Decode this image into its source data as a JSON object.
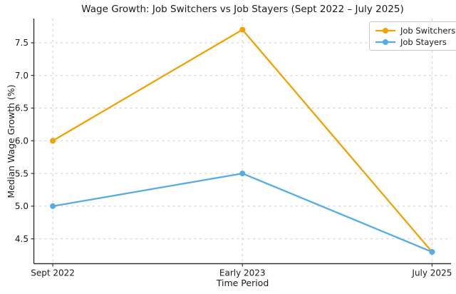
{
  "chart_data": {
    "type": "line",
    "title": "Wage Growth: Job Switchers vs Job Stayers (Sept 2022 – July 2025)",
    "xlabel": "Time Period",
    "ylabel": "Median Wage Growth (%)",
    "categories": [
      "Sept 2022",
      "Early 2023",
      "July 2025"
    ],
    "series": [
      {
        "name": "Job Switchers",
        "color": "#F2A202",
        "values": [
          6.0,
          7.7,
          4.3
        ]
      },
      {
        "name": "Job Stayers",
        "color": "#56ACE4",
        "values": [
          5.0,
          5.5,
          4.3
        ]
      }
    ],
    "yticks": [
      4.5,
      5.0,
      5.5,
      6.0,
      6.5,
      7.0,
      7.5
    ],
    "ytick_labels": [
      "4.5",
      "5.0",
      "5.5",
      "6.0",
      "6.5",
      "7.0",
      "7.5"
    ],
    "ylim": [
      4.12,
      7.87
    ],
    "grid": true,
    "grid_style": "dashed",
    "legend_position": "top-right",
    "colors": {
      "grid": "#cccccc",
      "axis": "#333333",
      "text": "#1a1a1a",
      "background": "#ffffff"
    }
  }
}
